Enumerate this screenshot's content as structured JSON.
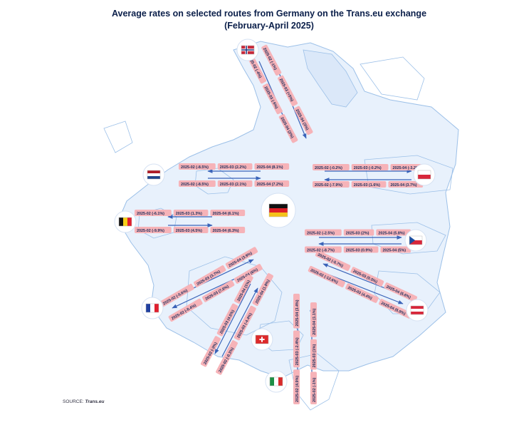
{
  "title_line1": "Average rates on selected routes from Germany on the Trans.eu exchange",
  "title_line2": "(February-April 2025)",
  "source_prefix": "SOURCE:",
  "source_name": "Trans.eu",
  "colors": {
    "decrease": "#f6b3b8",
    "increase": "#b9cdee",
    "text": "#1d2e5c",
    "arrow": "#3a63b8",
    "land": "#e8f1fc",
    "border": "#9cc0e8"
  },
  "routes": [
    {
      "name": "norway",
      "flag": "norway-flag",
      "outbound": [
        "2025-02 (-1%)",
        "2025-03 (+5%)",
        "2025-04 (3%)"
      ],
      "inbound": [
        "2025-02 (-4%)",
        "2025-03 (-5%)",
        "2025-04 (2%)"
      ]
    },
    {
      "name": "netherlands",
      "flag": "netherlands-flag",
      "outbound": [
        "2025-02 (-8.5%)",
        "2025-03 (2.2%)",
        "2025-04 (8.1%)"
      ],
      "inbound": [
        "2025-02 (-8.5%)",
        "2025-03 (2.1%)",
        "2025-04 (7.2%)"
      ]
    },
    {
      "name": "belgium",
      "flag": "belgium-flag",
      "outbound": [
        "2025-02 (-6.1%)",
        "2025-03 (1.3%)",
        "2025-04 (6.1%)"
      ],
      "inbound": [
        "2025-02 (-9.9%)",
        "2025-03 (4.5%)",
        "2025-04 (6.3%)"
      ]
    },
    {
      "name": "france",
      "flag": "france-flag",
      "outbound": [
        "2025-02 (-5.6%)",
        "2025-03 (3.7%)",
        "2025-04 (3.9%)"
      ],
      "inbound": [
        "2025-02 (-8.4%)",
        "2025-03 (7.6%)",
        "2025-04 (6%)"
      ]
    },
    {
      "name": "switzerland",
      "flag": "switzerland-flag",
      "outbound": [
        "2025-02 (-3%)",
        "2025-03 (4.5%)",
        "2025-04 (1%)"
      ],
      "inbound": [
        "2025-02 (-0.3%)",
        "2025-03 (-4.4%)",
        "2025-04 (1.8%)"
      ]
    },
    {
      "name": "italy",
      "flag": "italy-flag",
      "outbound": [
        "2025-02 (4.9%)",
        "2025-03 (-2.4%)",
        "2025-04 (3.4%)"
      ],
      "inbound": [
        "2025-02 (-1%)",
        "2025-03 (1%)",
        "2025-04 (1.1%)"
      ]
    },
    {
      "name": "austria",
      "flag": "austria-flag",
      "outbound": [
        "2025-02 (-5.7%)",
        "2025-03 (0.5%)",
        "2025-04 (6.6%)"
      ],
      "inbound": [
        "2025-02 (-12.6%)",
        "2025-03 (4.4%)",
        "2025-04 (6.9%)"
      ]
    },
    {
      "name": "czechia",
      "flag": "czechia-flag",
      "outbound": [
        "2025-02 (-2.5%)",
        "2025-03 (2%)",
        "2025-04 (5.8%)"
      ],
      "inbound": [
        "2025-02 (-8.7%)",
        "2025-03 (0.9%)",
        "2025-04 (5%)"
      ]
    },
    {
      "name": "poland",
      "flag": "poland-flag",
      "outbound": [
        "2025-02 (-0.2%)",
        "2025-03 (-0.2%)",
        "2025-04 (-3.2%)"
      ],
      "inbound": [
        "2025-02 (-7.9%)",
        "2025-03 (1.6%)",
        "2025-04 (3.7%)"
      ]
    }
  ]
}
